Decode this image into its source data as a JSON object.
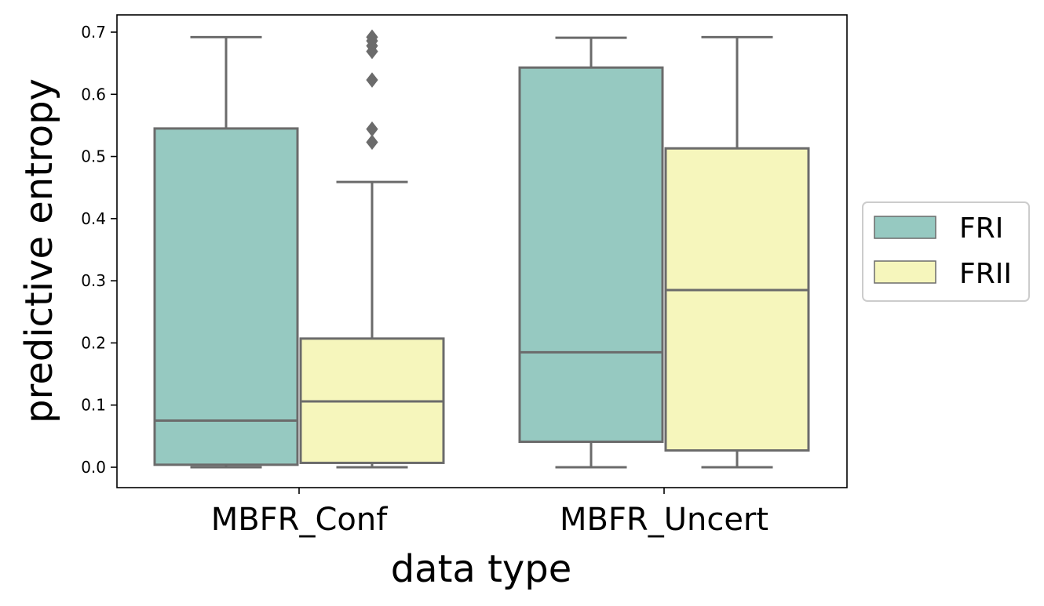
{
  "chart_data": {
    "type": "box",
    "title": "",
    "xlabel": "data type",
    "ylabel": "predictive entropy",
    "ylim": [
      -0.033,
      0.728
    ],
    "yticks": [
      0.0,
      0.1,
      0.2,
      0.3,
      0.4,
      0.5,
      0.6,
      0.7
    ],
    "ytick_labels": [
      "0.0",
      "0.1",
      "0.2",
      "0.3",
      "0.4",
      "0.5",
      "0.6",
      "0.7"
    ],
    "categories": [
      "MBFR_Conf",
      "MBFR_Uncert"
    ],
    "grid": false,
    "legend_position": "right, outside plot",
    "series": [
      {
        "name": "FRI",
        "color": "#96c9c1",
        "boxes": [
          {
            "whisker_low": 0.0,
            "q1": 0.004,
            "median": 0.075,
            "q3": 0.545,
            "whisker_high": 0.692,
            "outliers": []
          },
          {
            "whisker_low": 0.0,
            "q1": 0.041,
            "median": 0.185,
            "q3": 0.643,
            "whisker_high": 0.691,
            "outliers": []
          }
        ]
      },
      {
        "name": "FRII",
        "color": "#f6f6bc",
        "boxes": [
          {
            "whisker_low": 0.0,
            "q1": 0.007,
            "median": 0.106,
            "q3": 0.207,
            "whisker_high": 0.459,
            "outliers": [
              0.523,
              0.544,
              0.623,
              0.669,
              0.678,
              0.686,
              0.692
            ]
          },
          {
            "whisker_low": 0.0,
            "q1": 0.027,
            "median": 0.285,
            "q3": 0.513,
            "whisker_high": 0.692,
            "outliers": []
          }
        ]
      }
    ]
  },
  "colors": {
    "box_line": "#6b6b6b",
    "axes": "#000000"
  }
}
